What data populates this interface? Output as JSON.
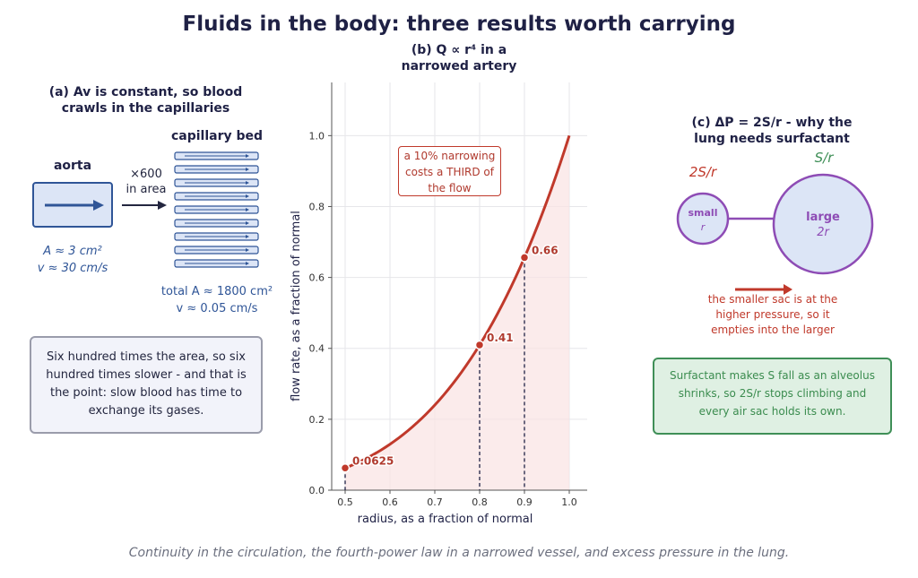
{
  "title": "Fluids in the body: three results worth carrying",
  "caption": "Continuity in the circulation, the fourth-power law in a narrowed vessel, and excess pressure in the lung.",
  "panel_a": {
    "title_line1": "(a) Av is constant, so blood",
    "title_line2": "crawls in the capillaries",
    "aorta_label": "aorta",
    "multiplier": "×600",
    "multiplier_sub": "in area",
    "capillary_label": "capillary bed",
    "aorta_area": "A ≈ 3 cm²",
    "aorta_speed": "v ≈ 30 cm/s",
    "cap_area": "total A ≈ 1800 cm²",
    "cap_speed": "v ≈ 0.05 cm/s",
    "note": "Six hundred times the area, so six hundred times slower - and that is the point: slow blood has time to exchange its gases."
  },
  "panel_b": {
    "title_line1": "(b) Q ∝ r⁴ in a",
    "title_line2": "narrowed artery",
    "annotation": "a 10% narrowing costs a THIRD of the flow"
  },
  "panel_c": {
    "title_line1": "(c) ΔP = 2S/r - why the",
    "title_line2": "lung needs surfactant",
    "small_pressure": "2S/r",
    "large_pressure": "S/r",
    "small_label": "small",
    "small_radius": "r",
    "large_label": "large",
    "large_radius": "2r",
    "flow_note": "the smaller sac is at the higher pressure, so it empties into the larger",
    "surfactant_note": "Surfactant makes S fall as an alveolus shrinks, so 2S/r stops climbing and every air sac holds its own."
  },
  "colors": {
    "curve": "#c0392b",
    "annotation_text": "#b03a2e",
    "bubble": "#8e4cb5",
    "surfactant": "#3f8f57",
    "ink": "#1f2145",
    "aorta": "#2f5597"
  },
  "chart_data": {
    "type": "line",
    "xlabel": "radius, as a fraction of normal",
    "ylabel": "flow rate, as a fraction of normal",
    "xlim": [
      0.47,
      1.04
    ],
    "ylim": [
      0,
      1.15
    ],
    "xticks": [
      "0.5",
      "0.6",
      "0.7",
      "0.8",
      "0.9",
      "1.0"
    ],
    "yticks": [
      "0.0",
      "0.2",
      "0.4",
      "0.6",
      "0.8",
      "1.0"
    ],
    "grid": true,
    "series": [
      {
        "x": [
          0.5,
          0.55,
          0.6,
          0.65,
          0.7,
          0.75,
          0.8,
          0.85,
          0.9,
          0.95,
          1.0
        ],
        "y": [
          0.0625,
          0.0915,
          0.1296,
          0.1785,
          0.2401,
          0.3164,
          0.4096,
          0.522,
          0.6561,
          0.8145,
          1.0
        ]
      }
    ],
    "markers": [
      {
        "x": 0.5,
        "y": 0.0625,
        "label": "0.0625"
      },
      {
        "x": 0.8,
        "y": 0.4096,
        "label": "0.41"
      },
      {
        "x": 0.9,
        "y": 0.6561,
        "label": "0.66"
      }
    ]
  }
}
